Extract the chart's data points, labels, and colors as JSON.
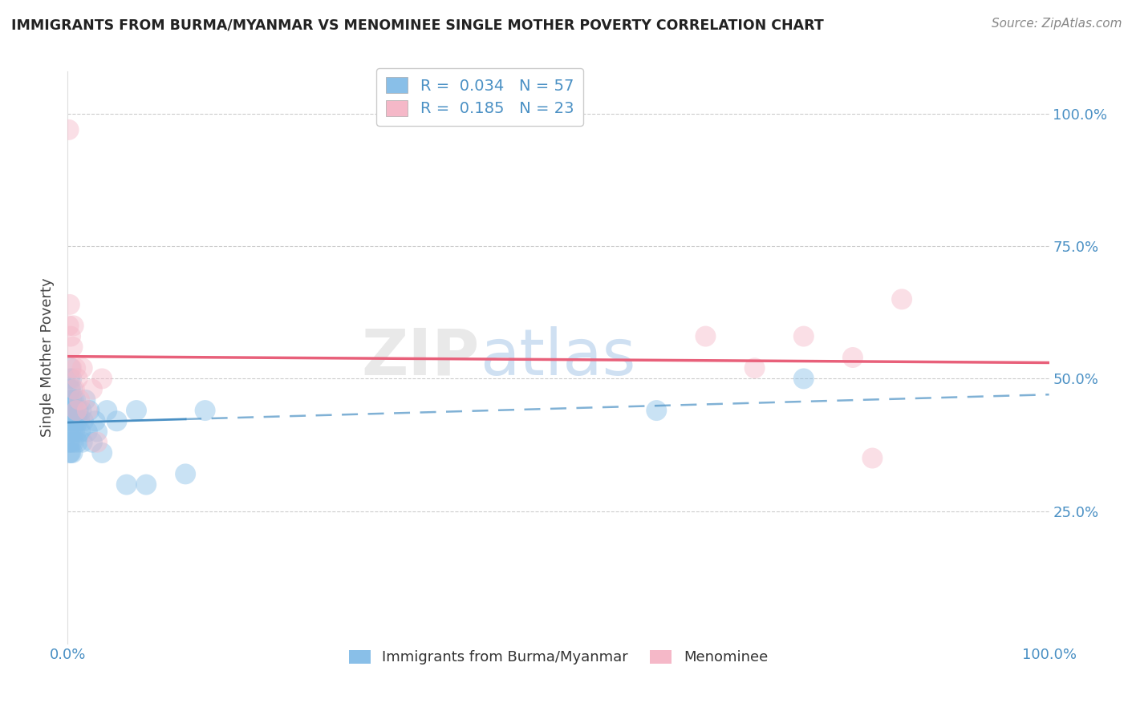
{
  "title": "IMMIGRANTS FROM BURMA/MYANMAR VS MENOMINEE SINGLE MOTHER POVERTY CORRELATION CHART",
  "source": "Source: ZipAtlas.com",
  "ylabel": "Single Mother Poverty",
  "blue_R": 0.034,
  "blue_N": 57,
  "pink_R": 0.185,
  "pink_N": 23,
  "blue_color": "#89bfe8",
  "pink_color": "#f5b8c8",
  "blue_line_color": "#4a90c4",
  "pink_line_color": "#e8607a",
  "legend_label_blue": "Immigrants from Burma/Myanmar",
  "legend_label_pink": "Menominee",
  "blue_x": [
    0.001,
    0.001,
    0.001,
    0.001,
    0.001,
    0.002,
    0.002,
    0.002,
    0.002,
    0.002,
    0.002,
    0.003,
    0.003,
    0.003,
    0.003,
    0.003,
    0.004,
    0.004,
    0.004,
    0.004,
    0.005,
    0.005,
    0.005,
    0.005,
    0.006,
    0.006,
    0.006,
    0.007,
    0.007,
    0.008,
    0.008,
    0.009,
    0.009,
    0.01,
    0.01,
    0.011,
    0.012,
    0.013,
    0.014,
    0.015,
    0.016,
    0.018,
    0.02,
    0.022,
    0.025,
    0.028,
    0.03,
    0.035,
    0.04,
    0.05,
    0.06,
    0.07,
    0.08,
    0.12,
    0.14,
    0.6,
    0.75
  ],
  "blue_y": [
    0.42,
    0.44,
    0.46,
    0.38,
    0.4,
    0.5,
    0.48,
    0.45,
    0.42,
    0.38,
    0.36,
    0.52,
    0.48,
    0.44,
    0.4,
    0.36,
    0.5,
    0.46,
    0.42,
    0.38,
    0.48,
    0.44,
    0.4,
    0.36,
    0.46,
    0.42,
    0.38,
    0.44,
    0.4,
    0.46,
    0.42,
    0.44,
    0.4,
    0.42,
    0.38,
    0.44,
    0.42,
    0.4,
    0.44,
    0.38,
    0.42,
    0.46,
    0.4,
    0.44,
    0.38,
    0.42,
    0.4,
    0.36,
    0.44,
    0.42,
    0.3,
    0.44,
    0.3,
    0.32,
    0.44,
    0.44,
    0.5
  ],
  "pink_x": [
    0.001,
    0.001,
    0.002,
    0.003,
    0.004,
    0.005,
    0.006,
    0.007,
    0.008,
    0.009,
    0.01,
    0.012,
    0.015,
    0.02,
    0.025,
    0.03,
    0.035,
    0.65,
    0.7,
    0.75,
    0.8,
    0.82,
    0.85
  ],
  "pink_y": [
    0.97,
    0.6,
    0.64,
    0.58,
    0.52,
    0.56,
    0.6,
    0.48,
    0.52,
    0.44,
    0.5,
    0.46,
    0.52,
    0.44,
    0.48,
    0.38,
    0.5,
    0.58,
    0.52,
    0.58,
    0.54,
    0.35,
    0.65
  ]
}
